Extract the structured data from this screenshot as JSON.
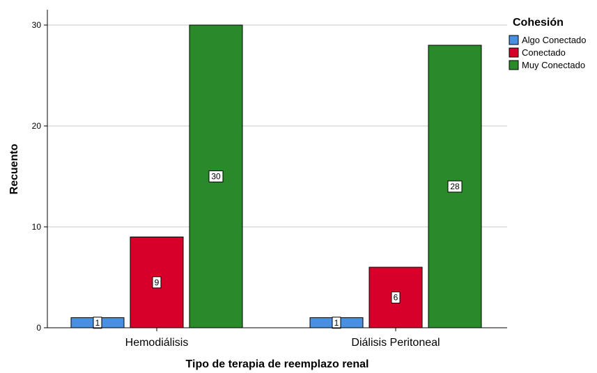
{
  "chart_data": {
    "type": "bar",
    "categories": [
      "Hemodiálisis",
      "Diálisis Peritoneal"
    ],
    "series": [
      {
        "name": "Algo Conectado",
        "values": [
          1,
          1
        ],
        "color": "#4a90e2"
      },
      {
        "name": "Conectado",
        "values": [
          9,
          6
        ],
        "color": "#d6002a"
      },
      {
        "name": "Muy Conectado",
        "values": [
          30,
          28
        ],
        "color": "#2a8a2a"
      }
    ],
    "xlabel": "Tipo de terapia de reemplazo renal",
    "ylabel": "Recuento",
    "legend_title": "Cohesión",
    "legend_position": "top-right",
    "ylim": [
      0,
      30
    ],
    "yticks": [
      0,
      10,
      20,
      30
    ],
    "grid": true
  }
}
